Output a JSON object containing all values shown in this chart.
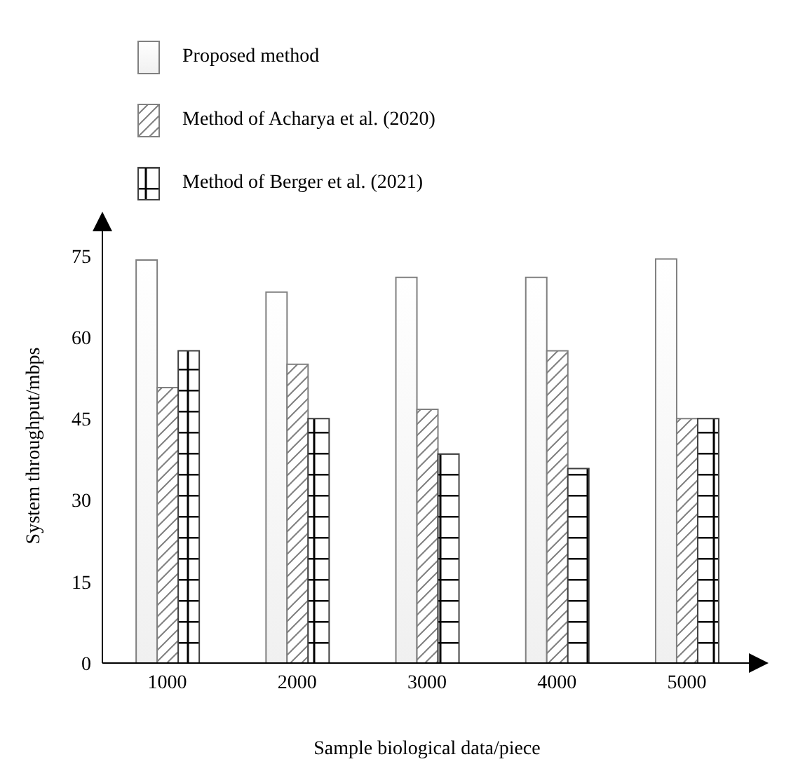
{
  "chart_data": {
    "type": "bar",
    "xlabel": "Sample biological data/piece",
    "ylabel": "System throughput/mbps",
    "categories": [
      "1000",
      "2000",
      "3000",
      "4000",
      "5000"
    ],
    "series": [
      {
        "name": "Proposed method",
        "color": "#808080",
        "values": [
          74.2,
          68.3,
          71,
          71,
          74.4
        ]
      },
      {
        "name": "Method of Acharya et al. (2020)",
        "color": "#808080",
        "values": [
          50.7,
          55,
          46.7,
          57.5,
          45
        ]
      },
      {
        "name": "Method of Berger et al. (2021)",
        "color": "#404040",
        "values": [
          57.5,
          45,
          38.5,
          35.8,
          45
        ]
      }
    ],
    "ylim": [
      0,
      80
    ],
    "yticks": [
      0,
      15,
      30,
      45,
      60,
      75
    ],
    "grid": false,
    "legend": "top"
  }
}
